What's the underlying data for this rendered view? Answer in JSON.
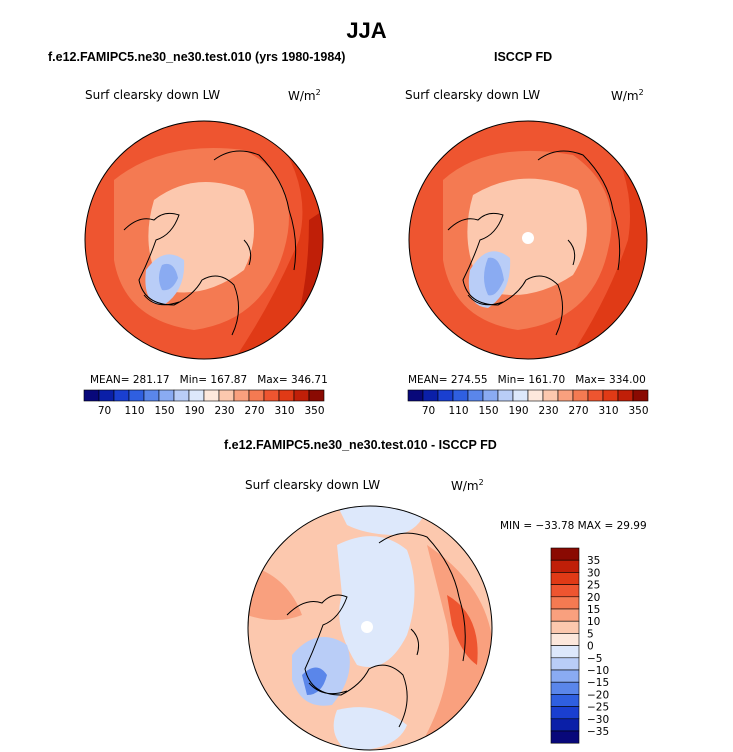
{
  "figure": {
    "season_title": "JJA"
  },
  "panels": [
    {
      "header": "f.e12.FAMIPC5.ne30_ne30.test.010 (yrs 1980-1984)",
      "variable": "Surf clearsky down LW",
      "units": "W/m",
      "units_exp": "2",
      "stats": {
        "mean_label": "MEAN=",
        "mean": "281.17",
        "min_label": "Min=",
        "min": "167.87",
        "max_label": "Max=",
        "max": "346.71"
      },
      "colorbar": {
        "ticks": [
          "70",
          "110",
          "150",
          "190",
          "230",
          "270",
          "310",
          "350"
        ],
        "colors": [
          "#08087a",
          "#0a1fa8",
          "#1a3fd0",
          "#2f5fe0",
          "#5a86ea",
          "#8aabf2",
          "#b9cdf7",
          "#dde8fb",
          "#fde8dc",
          "#fcc8ae",
          "#f9a07e",
          "#f47a52",
          "#ee5530",
          "#e03a16",
          "#c01f08",
          "#8a0a02"
        ]
      }
    },
    {
      "header": "ISCCP FD",
      "variable": "Surf clearsky down LW",
      "units": "W/m",
      "units_exp": "2",
      "stats": {
        "mean_label": "MEAN=",
        "mean": "274.55",
        "min_label": "Min=",
        "min": "161.70",
        "max_label": "Max=",
        "max": "334.00"
      },
      "colorbar": {
        "ticks": [
          "70",
          "110",
          "150",
          "190",
          "230",
          "270",
          "310",
          "350"
        ],
        "colors": [
          "#08087a",
          "#0a1fa8",
          "#1a3fd0",
          "#2f5fe0",
          "#5a86ea",
          "#8aabf2",
          "#b9cdf7",
          "#dde8fb",
          "#fde8dc",
          "#fcc8ae",
          "#f9a07e",
          "#f47a52",
          "#ee5530",
          "#e03a16",
          "#c01f08",
          "#8a0a02"
        ]
      }
    }
  ],
  "difference": {
    "header": "f.e12.FAMIPC5.ne30_ne30.test.010 - ISCCP FD",
    "variable": "Surf clearsky down LW",
    "units": "W/m",
    "units_exp": "2",
    "minmax": "MIN = −33.78 MAX =  29.99",
    "colorbar": {
      "labels": [
        "35",
        "30",
        "25",
        "20",
        "15",
        "10",
        "5",
        "0",
        "−5",
        "−10",
        "−15",
        "−20",
        "−25",
        "−30",
        "−35"
      ],
      "colors": [
        "#8a0a02",
        "#c01f08",
        "#e03a16",
        "#ee5530",
        "#f47a52",
        "#f9a07e",
        "#fcc8ae",
        "#fde8dc",
        "#dde8fb",
        "#b9cdf7",
        "#8aabf2",
        "#5a86ea",
        "#2f5fe0",
        "#1a3fd0",
        "#0a1fa8",
        "#08087a"
      ]
    }
  }
}
